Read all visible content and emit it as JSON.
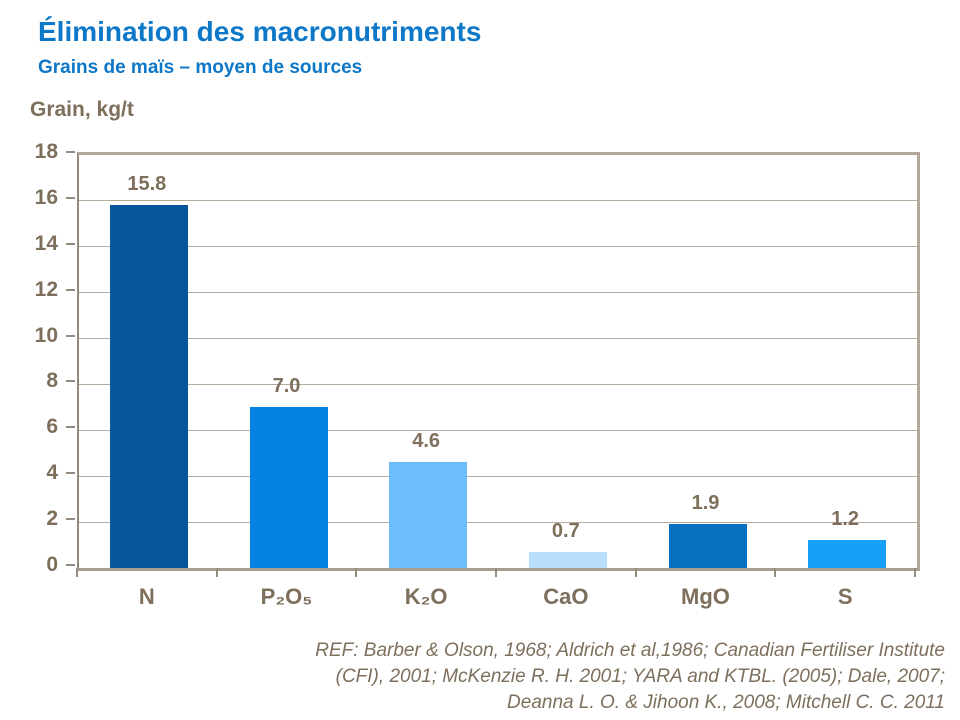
{
  "header": {
    "title": "Élimination des macronutriments",
    "subtitle": "Grains de maïs – moyen de sources"
  },
  "chart_data": {
    "type": "bar",
    "title": "Élimination des macronutriments",
    "subtitle": "Grains de maïs – moyen de sources",
    "ylabel": "Grain, kg/t",
    "xlabel": "",
    "ylim": [
      0,
      18
    ],
    "yticks": [
      0,
      2,
      4,
      6,
      8,
      10,
      12,
      14,
      16,
      18
    ],
    "grid": true,
    "legend": "none",
    "categories": [
      "N",
      "P₂O₅",
      "K₂O",
      "CaO",
      "MgO",
      "S"
    ],
    "values": [
      15.8,
      7.0,
      4.6,
      0.7,
      1.9,
      1.2
    ],
    "value_labels": [
      "15.8",
      "7.0",
      "4.6",
      "0.7",
      "1.9",
      "1.2"
    ],
    "bar_colors": [
      "#05569b",
      "#0682e2",
      "#6ebdfb",
      "#b9defb",
      "#0871bf",
      "#18a0f8"
    ]
  },
  "colors": {
    "title_blue": "#0d77c8",
    "axis_text": "#7d6f5c",
    "grid_line": "#b5ab9e",
    "axis_line": "#958b7d"
  },
  "footer": {
    "lines": [
      "REF: Barber & Olson, 1968; Aldrich et al,1986; Canadian Fertiliser Institute",
      "(CFI), 2001; McKenzie R. H. 2001; YARA and KTBL. (2005); Dale, 2007;",
      "Deanna L. O. & Jihoon K.,  2008; Mitchell C. C. 2011"
    ]
  }
}
